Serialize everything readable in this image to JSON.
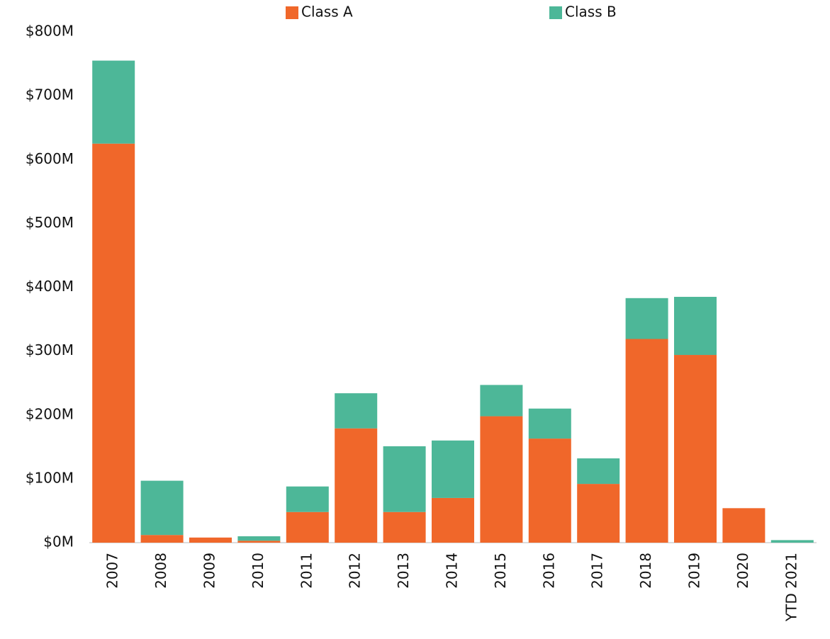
{
  "chart_data": {
    "type": "stacked_bar",
    "categories": [
      "2007",
      "2008",
      "2009",
      "2010",
      "2011",
      "2012",
      "2013",
      "2014",
      "2015",
      "2016",
      "2017",
      "2018",
      "2019",
      "2020",
      "YTD 2021"
    ],
    "series": [
      {
        "name": "Class A",
        "color": "#f0672a",
        "values": [
          625,
          12,
          8,
          3,
          48,
          179,
          48,
          70,
          198,
          163,
          92,
          319,
          294,
          54,
          0
        ]
      },
      {
        "name": "Class B",
        "color": "#4db798",
        "values": [
          130,
          85,
          0,
          7,
          40,
          55,
          103,
          90,
          49,
          47,
          40,
          64,
          91,
          0,
          4
        ]
      }
    ],
    "ylim": [
      0,
      800
    ],
    "yticks": [
      {
        "value": 0,
        "label": "$0M"
      },
      {
        "value": 100,
        "label": "$100M"
      },
      {
        "value": 200,
        "label": "$200M"
      },
      {
        "value": 300,
        "label": "$300M"
      },
      {
        "value": 400,
        "label": "$400M"
      },
      {
        "value": 500,
        "label": "$500M"
      },
      {
        "value": 600,
        "label": "$600M"
      },
      {
        "value": 700,
        "label": "$700M"
      },
      {
        "value": 800,
        "label": "$800M"
      }
    ],
    "grid": false,
    "legend": "top"
  }
}
